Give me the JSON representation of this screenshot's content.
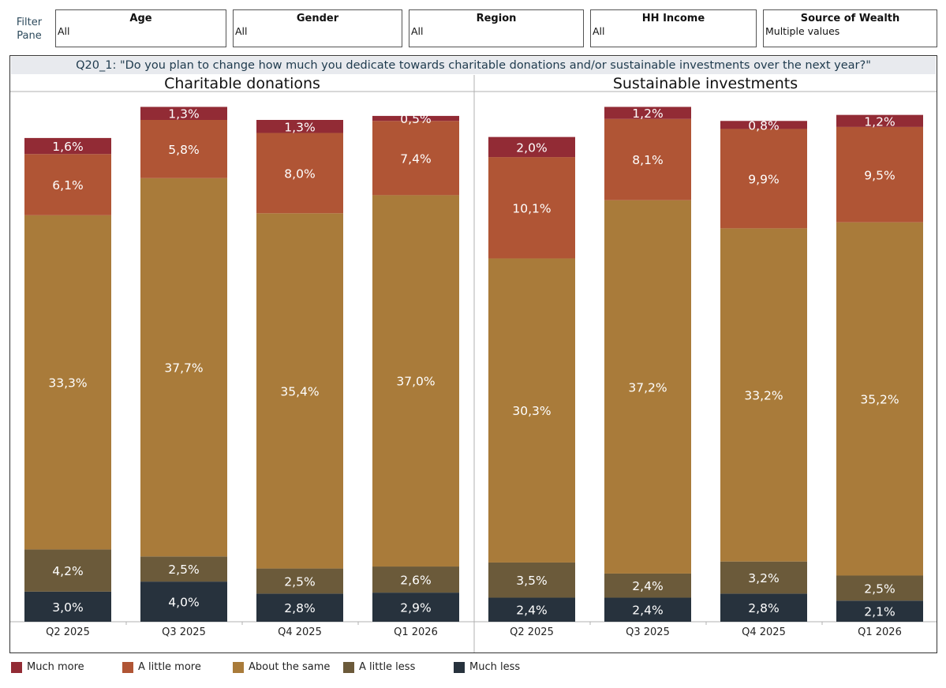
{
  "filters": {
    "pane_label_line1": "Filter",
    "pane_label_line2": "Pane",
    "items": [
      {
        "title": "Age",
        "value": "All"
      },
      {
        "title": "Gender",
        "value": "All"
      },
      {
        "title": "Region",
        "value": "All"
      },
      {
        "title": "HH Income",
        "value": "All"
      },
      {
        "title": "Source of Wealth",
        "value": "Multiple values"
      }
    ]
  },
  "question": "Q20_1: \"Do you plan to change how much you dedicate towards charitable donations and/or sustainable investments over the next year?\"",
  "colors": {
    "Much more": "#922b35",
    "A little more": "#b05535",
    "About the same": "#a97b3a",
    "A little less": "#6b5a3a",
    "Much less": "#27323d"
  },
  "chart_data": [
    {
      "type": "bar",
      "stacked": true,
      "title": "Charitable donations",
      "categories": [
        "Q2 2025",
        "Q3 2025",
        "Q4 2025",
        "Q1 2026"
      ],
      "series": [
        {
          "name": "Much less",
          "values": [
            3.0,
            4.0,
            2.8,
            2.9
          ],
          "labels": [
            "3,0%",
            "4,0%",
            "2,8%",
            "2,9%"
          ]
        },
        {
          "name": "A little less",
          "values": [
            4.2,
            2.5,
            2.5,
            2.6
          ],
          "labels": [
            "4,2%",
            "2,5%",
            "2,5%",
            "2,6%"
          ]
        },
        {
          "name": "About the same",
          "values": [
            33.3,
            37.7,
            35.4,
            37.0
          ],
          "labels": [
            "33,3%",
            "37,7%",
            "35,4%",
            "37,0%"
          ]
        },
        {
          "name": "A little more",
          "values": [
            6.1,
            5.8,
            8.0,
            7.4
          ],
          "labels": [
            "6,1%",
            "5,8%",
            "8,0%",
            "7,4%"
          ]
        },
        {
          "name": "Much more",
          "values": [
            1.6,
            1.3,
            1.3,
            0.5
          ],
          "labels": [
            "1,6%",
            "1,3%",
            "1,3%",
            "0,5%"
          ]
        }
      ]
    },
    {
      "type": "bar",
      "stacked": true,
      "title": "Sustainable investments",
      "categories": [
        "Q2 2025",
        "Q3 2025",
        "Q4 2025",
        "Q1 2026"
      ],
      "series": [
        {
          "name": "Much less",
          "values": [
            2.4,
            2.4,
            2.8,
            2.1
          ],
          "labels": [
            "2,4%",
            "2,4%",
            "2,8%",
            "2,1%"
          ]
        },
        {
          "name": "A little less",
          "values": [
            3.5,
            2.4,
            3.2,
            2.5
          ],
          "labels": [
            "3,5%",
            "2,4%",
            "3,2%",
            "2,5%"
          ]
        },
        {
          "name": "About the same",
          "values": [
            30.3,
            37.2,
            33.2,
            35.2
          ],
          "labels": [
            "30,3%",
            "37,2%",
            "33,2%",
            "35,2%"
          ]
        },
        {
          "name": "A little more",
          "values": [
            10.1,
            8.1,
            9.9,
            9.5
          ],
          "labels": [
            "10,1%",
            "8,1%",
            "9,9%",
            "9,5%"
          ]
        },
        {
          "name": "Much more",
          "values": [
            2.0,
            1.2,
            0.8,
            1.2
          ],
          "labels": [
            "2,0%",
            "1,2%",
            "0,8%",
            "1,2%"
          ]
        }
      ]
    }
  ],
  "legend": [
    "Much more",
    "A little more",
    "About the same",
    "A little less",
    "Much less"
  ]
}
